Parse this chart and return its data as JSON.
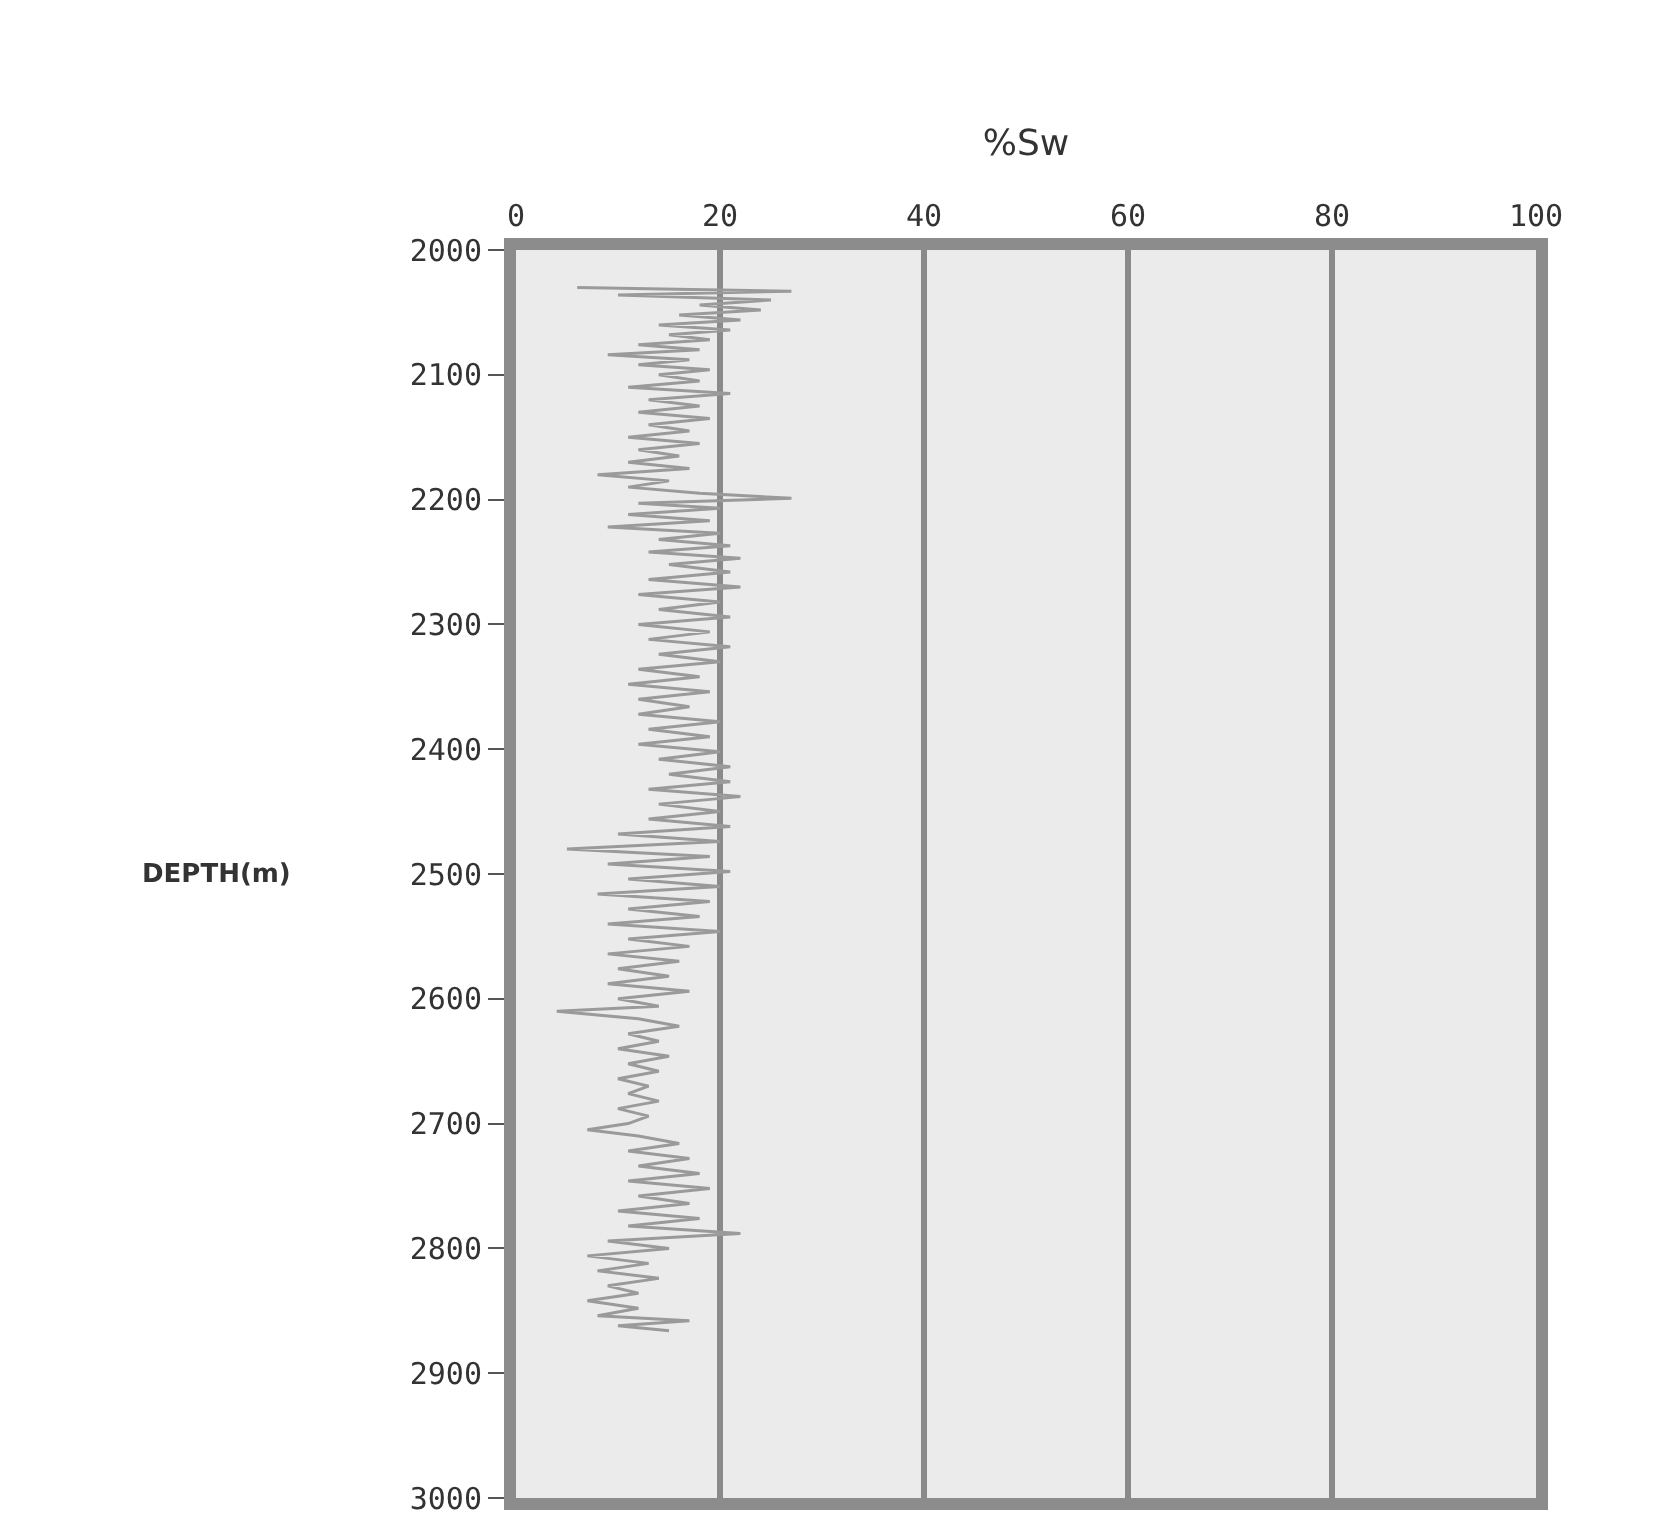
{
  "chart_data": {
    "type": "line",
    "xlabel": "%Sw",
    "ylabel": "DEPTH(m)",
    "xlim": [
      0,
      100
    ],
    "xticks": [
      0,
      20,
      40,
      60,
      80,
      100
    ],
    "ylim": [
      3000,
      2000
    ],
    "yticks": [
      2000,
      2100,
      2200,
      2300,
      2400,
      2500,
      2600,
      2700,
      2800,
      2900,
      3000
    ],
    "grid": "x",
    "marker": "none",
    "line_style": "solid",
    "series": [
      {
        "color": "#9a9a9a",
        "x": [
          6,
          27,
          10,
          25,
          18,
          24,
          16,
          22,
          14,
          21,
          15,
          19,
          12,
          18,
          9,
          17,
          12,
          19,
          14,
          18,
          11,
          21,
          13,
          18,
          12,
          19,
          13,
          17,
          11,
          18,
          12,
          16,
          11,
          17,
          8,
          15,
          11,
          18,
          27,
          12,
          20,
          11,
          19,
          9,
          20,
          14,
          21,
          13,
          22,
          15,
          21,
          13,
          22,
          12,
          20,
          14,
          21,
          12,
          19,
          13,
          21,
          14,
          20,
          12,
          18,
          11,
          19,
          12,
          17,
          12,
          20,
          13,
          19,
          12,
          20,
          14,
          21,
          15,
          21,
          13,
          22,
          14,
          20,
          13,
          21,
          10,
          20,
          5,
          19,
          9,
          21,
          11,
          20,
          8,
          19,
          11,
          18,
          9,
          20,
          11,
          17,
          9,
          16,
          10,
          15,
          9,
          17,
          10,
          14,
          4,
          12,
          16,
          11,
          14,
          10,
          15,
          11,
          14,
          10,
          13,
          11,
          14,
          10,
          13,
          11,
          7,
          12,
          16,
          11,
          17,
          12,
          18,
          11,
          19,
          12,
          17,
          10,
          18,
          11,
          22,
          9,
          15,
          7,
          13,
          8,
          14,
          9,
          12,
          7,
          12,
          8,
          17,
          10,
          15
        ],
        "values": [
          2030,
          2033,
          2036,
          2040,
          2044,
          2048,
          2052,
          2056,
          2060,
          2064,
          2068,
          2072,
          2076,
          2080,
          2084,
          2088,
          2092,
          2096,
          2100,
          2105,
          2110,
          2115,
          2120,
          2125,
          2130,
          2135,
          2140,
          2145,
          2150,
          2155,
          2160,
          2165,
          2170,
          2175,
          2180,
          2185,
          2190,
          2195,
          2199,
          2203,
          2207,
          2212,
          2217,
          2222,
          2227,
          2232,
          2237,
          2242,
          2247,
          2252,
          2258,
          2264,
          2270,
          2276,
          2282,
          2288,
          2294,
          2300,
          2306,
          2312,
          2318,
          2324,
          2330,
          2336,
          2342,
          2348,
          2354,
          2360,
          2366,
          2372,
          2378,
          2384,
          2390,
          2396,
          2402,
          2408,
          2414,
          2420,
          2426,
          2432,
          2438,
          2444,
          2450,
          2456,
          2462,
          2468,
          2474,
          2480,
          2486,
          2492,
          2498,
          2504,
          2510,
          2516,
          2522,
          2528,
          2534,
          2540,
          2546,
          2552,
          2558,
          2564,
          2570,
          2576,
          2582,
          2588,
          2594,
          2600,
          2606,
          2610,
          2616,
          2622,
          2628,
          2634,
          2640,
          2646,
          2652,
          2658,
          2664,
          2670,
          2676,
          2682,
          2688,
          2694,
          2700,
          2705,
          2710,
          2716,
          2722,
          2728,
          2734,
          2740,
          2746,
          2752,
          2758,
          2764,
          2770,
          2776,
          2782,
          2788,
          2794,
          2800,
          2806,
          2812,
          2818,
          2824,
          2830,
          2836,
          2842,
          2848,
          2854,
          2858,
          2862,
          2866
        ]
      }
    ]
  }
}
